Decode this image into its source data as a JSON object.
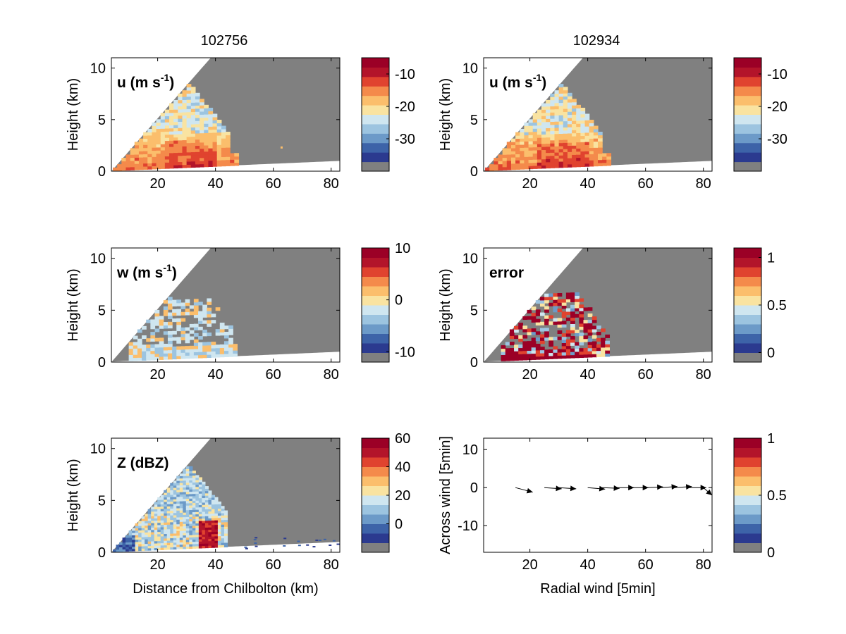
{
  "columns": {
    "left_title": "102756",
    "right_title": "102934"
  },
  "colors": {
    "colormap": [
      "#808080",
      "#2b3a8f",
      "#3d63a8",
      "#6c9ac8",
      "#9cc4e0",
      "#cfe6f0",
      "#f9e3a1",
      "#fbbe6c",
      "#f48a4b",
      "#e0432f",
      "#b3142a",
      "#9b0026"
    ],
    "missing": "#808080",
    "background": "#ffffff"
  },
  "chart_data": [
    {
      "type": "heatmap",
      "id": "u-panel",
      "label": "u (m s-1)",
      "ylabel": "Height (km)",
      "xlabel": "",
      "xlim": [
        4,
        83
      ],
      "ylim": [
        0,
        11
      ],
      "xticks": [
        20,
        40,
        60,
        80
      ],
      "yticks": [
        0,
        5,
        10
      ],
      "colorbar": {
        "ticks": [
          "-10",
          "-20",
          "-30"
        ],
        "tick_values": [
          -10,
          -20,
          -30
        ],
        "range": [
          -40,
          -5
        ]
      }
    },
    {
      "type": "heatmap",
      "id": "u-panel-2",
      "label": "u (m s-1)",
      "ylabel": "Height (km)",
      "xlabel": "",
      "xlim": [
        4,
        83
      ],
      "ylim": [
        0,
        11
      ],
      "xticks": [
        20,
        40,
        60,
        80
      ],
      "yticks": [
        0,
        5,
        10
      ],
      "colorbar": {
        "ticks": [
          "-10",
          "-20",
          "-30"
        ],
        "tick_values": [
          -10,
          -20,
          -30
        ],
        "range": [
          -40,
          -5
        ]
      }
    },
    {
      "type": "heatmap",
      "id": "w-panel",
      "label": "w (m s-1)",
      "ylabel": "Height (km)",
      "xlabel": "",
      "xlim": [
        4,
        83
      ],
      "ylim": [
        0,
        11
      ],
      "xticks": [
        20,
        40,
        60,
        80
      ],
      "yticks": [
        0,
        5,
        10
      ],
      "colorbar": {
        "ticks": [
          "10",
          "0",
          "-10"
        ],
        "tick_values": [
          10,
          0,
          -10
        ],
        "range": [
          -12,
          10
        ]
      }
    },
    {
      "type": "heatmap",
      "id": "error-panel",
      "label": "error",
      "ylabel": "Height (km)",
      "xlabel": "",
      "xlim": [
        4,
        83
      ],
      "ylim": [
        0,
        11
      ],
      "xticks": [
        20,
        40,
        60,
        80
      ],
      "yticks": [
        0,
        5,
        10
      ],
      "colorbar": {
        "ticks": [
          "1",
          "0.5",
          "0"
        ],
        "tick_values": [
          1,
          0.5,
          0
        ],
        "range": [
          -0.1,
          1.1
        ]
      }
    },
    {
      "type": "heatmap",
      "id": "z-panel",
      "label": "Z (dBZ)",
      "ylabel": "Height (km)",
      "xlabel": "Distance from Chilbolton (km)",
      "xlim": [
        4,
        83
      ],
      "ylim": [
        0,
        11
      ],
      "xticks": [
        20,
        40,
        60,
        80
      ],
      "yticks": [
        0,
        5,
        10
      ],
      "colorbar": {
        "ticks": [
          "60",
          "40",
          "20",
          "0"
        ],
        "tick_values": [
          60,
          40,
          20,
          0
        ],
        "range": [
          -20,
          60
        ]
      }
    },
    {
      "type": "scatter",
      "id": "vector-panel",
      "label": "",
      "ylabel": "Across wind [5min]",
      "xlabel": "Radial wind [5min]",
      "xlim": [
        4,
        83
      ],
      "ylim": [
        -17,
        13
      ],
      "xticks": [
        20,
        40,
        60,
        80
      ],
      "yticks": [
        10,
        0,
        -10
      ],
      "vectors": [
        {
          "x": 15,
          "y": 0,
          "u": 6,
          "v": -1.2
        },
        {
          "x": 25,
          "y": 0,
          "u": 6,
          "v": -0.3
        },
        {
          "x": 30,
          "y": 0,
          "u": 6,
          "v": -0.3
        },
        {
          "x": 40,
          "y": 0,
          "u": 6,
          "v": -0.4
        },
        {
          "x": 45,
          "y": 0,
          "u": 6,
          "v": -0.2
        },
        {
          "x": 50,
          "y": 0,
          "u": 6,
          "v": 0
        },
        {
          "x": 55,
          "y": 0,
          "u": 6,
          "v": 0
        },
        {
          "x": 60,
          "y": 0,
          "u": 6,
          "v": 0.2
        },
        {
          "x": 65,
          "y": 0,
          "u": 6,
          "v": 0.3
        },
        {
          "x": 70,
          "y": 0,
          "u": 6,
          "v": 0.3
        },
        {
          "x": 75,
          "y": 0,
          "u": 6,
          "v": 0
        },
        {
          "x": 80,
          "y": 0,
          "u": 3,
          "v": -2
        }
      ],
      "colorbar": {
        "ticks": [
          "1",
          "0.5",
          "0"
        ],
        "tick_values": [
          1,
          0.5,
          0
        ],
        "range": [
          0,
          1
        ]
      }
    }
  ]
}
